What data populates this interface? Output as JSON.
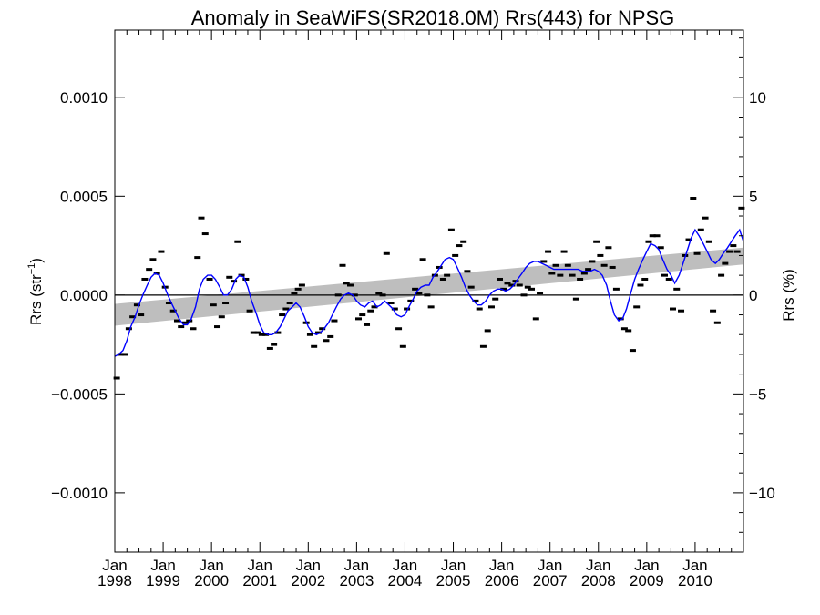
{
  "chart_data": {
    "type": "line",
    "title": "Anomaly in SeaWiFS(SR2018.0M) Rrs(443) for NPSG",
    "ylabel_left": "Rrs (str",
    "ylabel_left_sup": "−1",
    "ylabel_left_close": ")",
    "ylabel_right": "Rrs (%)",
    "x_range": [
      1998.0,
      2011.0
    ],
    "ylim_left": [
      -0.0013,
      0.00134
    ],
    "ylim_right": [
      -13,
      13.4
    ],
    "grid": false,
    "x_ticks": [
      {
        "value": 1998.0,
        "month": "Jan",
        "year": "1998"
      },
      {
        "value": 1999.0,
        "month": "Jan",
        "year": "1999"
      },
      {
        "value": 2000.0,
        "month": "Jan",
        "year": "2000"
      },
      {
        "value": 2001.0,
        "month": "Jan",
        "year": "2001"
      },
      {
        "value": 2002.0,
        "month": "Jan",
        "year": "2002"
      },
      {
        "value": 2003.0,
        "month": "Jan",
        "year": "2003"
      },
      {
        "value": 2004.0,
        "month": "Jan",
        "year": "2004"
      },
      {
        "value": 2005.0,
        "month": "Jan",
        "year": "2005"
      },
      {
        "value": 2006.0,
        "month": "Jan",
        "year": "2006"
      },
      {
        "value": 2007.0,
        "month": "Jan",
        "year": "2007"
      },
      {
        "value": 2008.0,
        "month": "Jan",
        "year": "2008"
      },
      {
        "value": 2009.0,
        "month": "Jan",
        "year": "2009"
      },
      {
        "value": 2010.0,
        "month": "Jan",
        "year": "2010"
      }
    ],
    "y_ticks_left": [
      {
        "value": 0.001,
        "label": "0.0010"
      },
      {
        "value": 0.0005,
        "label": "0.0005"
      },
      {
        "value": 0.0,
        "label": "0.0000"
      },
      {
        "value": -0.0005,
        "label": "−0.0005"
      },
      {
        "value": -0.001,
        "label": "−0.0010"
      }
    ],
    "y_ticks_right": [
      {
        "value": 10,
        "label": "10"
      },
      {
        "value": 5,
        "label": "5"
      },
      {
        "value": 0,
        "label": "0"
      },
      {
        "value": -5,
        "label": "−5"
      },
      {
        "value": -10,
        "label": "−10"
      }
    ],
    "trend_band": {
      "x": [
        1998.0,
        2011.0
      ],
      "upper": [
        -4.5e-05,
        0.00024
      ],
      "lower": [
        -0.000155,
        0.000155
      ]
    },
    "series": [
      {
        "kind": "monthly",
        "color": "#000000",
        "x": [
          1998.04,
          1998.12,
          1998.21,
          1998.29,
          1998.37,
          1998.46,
          1998.54,
          1998.62,
          1998.71,
          1998.79,
          1998.87,
          1998.96,
          1999.04,
          1999.12,
          1999.21,
          1999.29,
          1999.37,
          1999.46,
          1999.54,
          1999.62,
          1999.71,
          1999.79,
          1999.87,
          1999.96,
          2000.04,
          2000.12,
          2000.21,
          2000.29,
          2000.37,
          2000.46,
          2000.54,
          2000.62,
          2000.71,
          2000.79,
          2000.87,
          2000.96,
          2001.04,
          2001.12,
          2001.21,
          2001.29,
          2001.37,
          2001.46,
          2001.54,
          2001.62,
          2001.71,
          2001.79,
          2001.87,
          2001.96,
          2002.04,
          2002.12,
          2002.21,
          2002.29,
          2002.37,
          2002.46,
          2002.54,
          2002.62,
          2002.71,
          2002.79,
          2002.87,
          2002.96,
          2003.04,
          2003.12,
          2003.21,
          2003.29,
          2003.37,
          2003.46,
          2003.54,
          2003.62,
          2003.71,
          2003.79,
          2003.87,
          2003.96,
          2004.04,
          2004.12,
          2004.21,
          2004.29,
          2004.37,
          2004.46,
          2004.54,
          2004.62,
          2004.71,
          2004.79,
          2004.87,
          2004.96,
          2005.04,
          2005.12,
          2005.21,
          2005.29,
          2005.37,
          2005.46,
          2005.54,
          2005.62,
          2005.71,
          2005.79,
          2005.87,
          2005.96,
          2006.04,
          2006.12,
          2006.21,
          2006.29,
          2006.37,
          2006.46,
          2006.54,
          2006.62,
          2006.71,
          2006.79,
          2006.87,
          2006.96,
          2007.04,
          2007.12,
          2007.21,
          2007.29,
          2007.37,
          2007.46,
          2007.54,
          2007.62,
          2007.71,
          2007.79,
          2007.87,
          2007.96,
          2008.04,
          2008.12,
          2008.21,
          2008.29,
          2008.37,
          2008.46,
          2008.54,
          2008.62,
          2008.71,
          2008.79,
          2008.87,
          2008.96,
          2009.04,
          2009.12,
          2009.21,
          2009.29,
          2009.37,
          2009.46,
          2009.54,
          2009.62,
          2009.71,
          2009.79,
          2009.87,
          2009.96,
          2010.04,
          2010.12,
          2010.21,
          2010.29,
          2010.37,
          2010.46,
          2010.54,
          2010.62,
          2010.71,
          2010.79,
          2010.87,
          2010.96
        ],
        "y": [
          -0.00042,
          -0.0003,
          -0.0003,
          -0.00017,
          -0.00011,
          -5e-05,
          -0.0001,
          8e-05,
          0.00013,
          0.00018,
          0.00011,
          0.00022,
          4e-05,
          -4e-05,
          -8e-05,
          -0.00013,
          -0.00016,
          -0.00014,
          -0.00013,
          -0.00017,
          0.00019,
          0.00039,
          0.00031,
          8e-05,
          -5e-05,
          -0.00016,
          -0.00011,
          -4e-05,
          9e-05,
          7e-05,
          0.00027,
          0.0001,
          8e-05,
          -8e-05,
          -0.00019,
          -0.00019,
          -0.0002,
          -0.0002,
          -0.00027,
          -0.00025,
          -0.00019,
          -0.0001,
          -7e-05,
          -4e-05,
          1e-05,
          3e-05,
          5e-05,
          -0.00014,
          -0.0002,
          -0.00026,
          -0.00019,
          -0.00017,
          -0.00023,
          -0.00021,
          -0.00013,
          0.0,
          0.00015,
          6e-05,
          5e-05,
          0.0,
          -0.00012,
          -0.0001,
          -0.00015,
          -8e-05,
          -6e-05,
          1e-05,
          0.0,
          0.00021,
          -4e-05,
          -7e-05,
          -0.00017,
          -0.00026,
          -7e-05,
          -3e-05,
          3e-05,
          1e-05,
          0.00018,
          0.0,
          -6e-05,
          0.0001,
          0.00014,
          8e-05,
          0.0001,
          0.00033,
          0.0002,
          0.00025,
          0.00027,
          0.00012,
          4e-05,
          -3e-05,
          -7e-05,
          -0.00026,
          -0.00018,
          -6e-05,
          -2e-05,
          8e-05,
          3e-05,
          6e-05,
          5e-05,
          7e-05,
          5e-05,
          0.0,
          4e-05,
          3e-05,
          -0.00012,
          1e-05,
          0.00017,
          0.00022,
          0.00011,
          0.00015,
          0.0001,
          0.00022,
          0.00015,
          0.0001,
          -2e-05,
          8e-05,
          0.00011,
          0.00013,
          0.00017,
          0.00027,
          0.0002,
          0.00015,
          0.00024,
          0.00014,
          3e-05,
          -0.00012,
          -0.00017,
          -0.00018,
          -0.00028,
          -6e-05,
          5e-05,
          8e-05,
          0.00027,
          0.0003,
          0.0003,
          0.00024,
          0.0001,
          8e-05,
          -7e-05,
          3e-05,
          -8e-05,
          0.0002,
          0.00028,
          0.00049,
          0.00021,
          0.00033,
          0.00039,
          0.00027,
          -8e-05,
          -0.00014,
          0.0001,
          0.00016,
          0.00022,
          0.00025,
          0.00022,
          0.00044
        ]
      },
      {
        "kind": "smoothed",
        "color": "#0000ff",
        "x": [
          1998.0,
          1998.08,
          1998.17,
          1998.25,
          1998.33,
          1998.42,
          1998.5,
          1998.58,
          1998.67,
          1998.75,
          1998.83,
          1998.92,
          1999.0,
          1999.08,
          1999.17,
          1999.25,
          1999.33,
          1999.42,
          1999.5,
          1999.58,
          1999.67,
          1999.75,
          1999.83,
          1999.92,
          2000.0,
          2000.08,
          2000.17,
          2000.25,
          2000.33,
          2000.42,
          2000.5,
          2000.58,
          2000.67,
          2000.75,
          2000.83,
          2000.92,
          2001.0,
          2001.08,
          2001.17,
          2001.25,
          2001.33,
          2001.42,
          2001.5,
          2001.58,
          2001.67,
          2001.75,
          2001.83,
          2001.92,
          2002.0,
          2002.08,
          2002.17,
          2002.25,
          2002.33,
          2002.42,
          2002.5,
          2002.58,
          2002.67,
          2002.75,
          2002.83,
          2002.92,
          2003.0,
          2003.08,
          2003.17,
          2003.25,
          2003.33,
          2003.42,
          2003.5,
          2003.58,
          2003.67,
          2003.75,
          2003.83,
          2003.92,
          2004.0,
          2004.08,
          2004.17,
          2004.25,
          2004.33,
          2004.42,
          2004.5,
          2004.58,
          2004.67,
          2004.75,
          2004.83,
          2004.92,
          2005.0,
          2005.08,
          2005.17,
          2005.25,
          2005.33,
          2005.42,
          2005.5,
          2005.58,
          2005.67,
          2005.75,
          2005.83,
          2005.92,
          2006.0,
          2006.08,
          2006.17,
          2006.25,
          2006.33,
          2006.42,
          2006.5,
          2006.58,
          2006.67,
          2006.75,
          2006.83,
          2006.92,
          2007.0,
          2007.08,
          2007.17,
          2007.25,
          2007.33,
          2007.42,
          2007.5,
          2007.58,
          2007.67,
          2007.75,
          2007.83,
          2007.92,
          2008.0,
          2008.08,
          2008.17,
          2008.25,
          2008.33,
          2008.42,
          2008.5,
          2008.58,
          2008.67,
          2008.75,
          2008.83,
          2008.92,
          2009.0,
          2009.08,
          2009.17,
          2009.25,
          2009.33,
          2009.42,
          2009.5,
          2009.58,
          2009.67,
          2009.75,
          2009.83,
          2009.92,
          2010.0,
          2010.08,
          2010.17,
          2010.25,
          2010.33,
          2010.42,
          2010.5,
          2010.58,
          2010.67,
          2010.75,
          2010.83,
          2010.92,
          2011.0
        ],
        "y": [
          -0.00031,
          -0.0003,
          -0.00028,
          -0.00023,
          -0.00016,
          -0.00011,
          -5e-05,
          0.0,
          5e-05,
          9e-05,
          0.00011,
          0.0001,
          6e-05,
          1e-05,
          -4e-05,
          -8e-05,
          -0.00012,
          -0.00015,
          -0.00015,
          -0.00012,
          -6e-05,
          3e-05,
          8e-05,
          0.0001,
          0.0001,
          8e-05,
          4e-05,
          0.0,
          0.0,
          3e-05,
          8e-05,
          0.0001,
          9e-05,
          4e-05,
          -3e-05,
          -9e-05,
          -0.00015,
          -0.00019,
          -0.0002,
          -0.0002,
          -0.00019,
          -0.00016,
          -0.00012,
          -8e-05,
          -6e-05,
          -4e-05,
          -6e-05,
          -0.00011,
          -0.00016,
          -0.00019,
          -0.0002,
          -0.00019,
          -0.00017,
          -0.00014,
          -0.0001,
          -6e-05,
          -2e-05,
          0.0,
          1e-05,
          0.0,
          -3e-05,
          -5e-05,
          -6e-05,
          -4e-05,
          -3e-05,
          -6e-05,
          -5e-05,
          -3e-05,
          -5e-05,
          -7e-05,
          -0.0001,
          -0.00011,
          -0.0001,
          -6e-05,
          -2e-05,
          2e-05,
          4e-05,
          5e-05,
          5e-05,
          9e-05,
          0.00012,
          0.00015,
          0.00018,
          0.00019,
          0.00018,
          0.00014,
          9e-05,
          4e-05,
          0.0,
          -3e-05,
          -5e-05,
          -5e-05,
          -3e-05,
          0.0,
          2e-05,
          3e-05,
          3e-05,
          2e-05,
          3e-05,
          5e-05,
          8e-05,
          0.00011,
          0.00014,
          0.00016,
          0.00017,
          0.00017,
          0.00016,
          0.00015,
          0.00014,
          0.00013,
          0.00013,
          0.00013,
          0.00013,
          0.00013,
          0.00013,
          0.00013,
          0.00012,
          0.00012,
          0.00012,
          0.00013,
          0.00012,
          0.0001,
          5e-05,
          -3e-05,
          -0.0001,
          -0.00013,
          -0.00012,
          -7e-05,
          1e-05,
          8e-05,
          0.00013,
          0.00018,
          0.00022,
          0.00026,
          0.00025,
          0.00023,
          0.00018,
          0.00013,
          0.0001,
          6e-05,
          0.0001,
          0.00016,
          0.00022,
          0.00029,
          0.00033,
          0.0003,
          0.00026,
          0.00022,
          0.00018,
          0.00016,
          0.00018,
          0.00021,
          0.00024,
          0.00027,
          0.0003,
          0.00033,
          0.00027
        ]
      }
    ]
  }
}
